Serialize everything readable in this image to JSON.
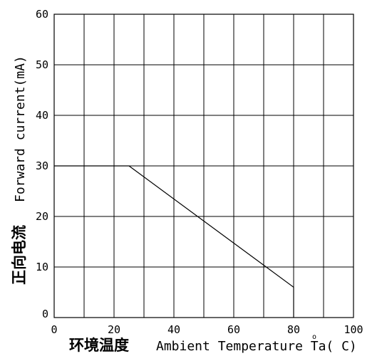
{
  "chart_data": {
    "type": "line",
    "xlabel_cn": "环境温度",
    "xlabel_en": "Ambient Temperature Ta( C)",
    "degree_mark": "o",
    "ylabel_cn": "正向电流",
    "ylabel_en": "Forward current(mA)",
    "xlim": [
      0,
      100
    ],
    "ylim": [
      0,
      60
    ],
    "x_ticks": [
      0,
      20,
      40,
      60,
      80,
      100
    ],
    "x_tick_labels": [
      "0",
      "20",
      "40",
      "60",
      "80",
      "100"
    ],
    "y_ticks": [
      0,
      10,
      20,
      30,
      40,
      50,
      60
    ],
    "y_tick_labels": [
      "0",
      "10",
      "20",
      "30",
      "40",
      "50",
      "60"
    ],
    "x_grid_step": 10,
    "y_grid_step": 10,
    "grid": true,
    "series": [
      {
        "x": [
          0,
          25,
          80,
          80
        ],
        "y": [
          30,
          30,
          6,
          0
        ]
      }
    ]
  }
}
